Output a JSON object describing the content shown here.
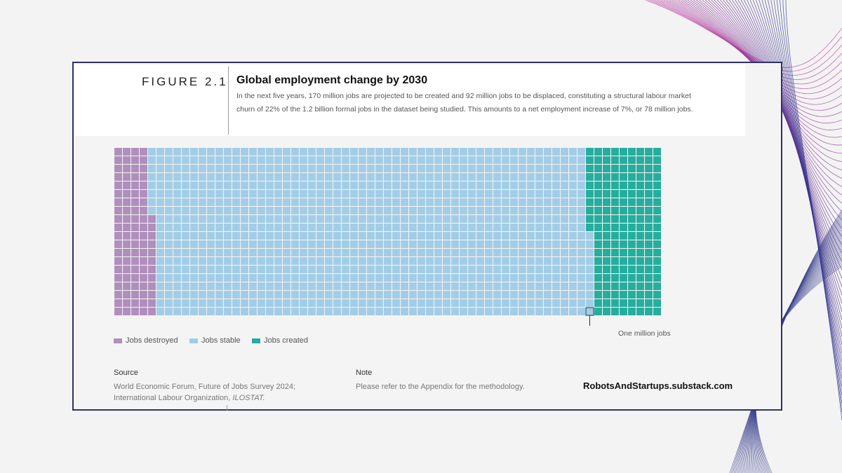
{
  "figure": {
    "label": "FIGURE 2.1",
    "title": "Global employment change by 2030",
    "subtitle": "In the next five years, 170 million jobs are projected to be created and 92 million jobs to be displaced, constituting a structural labour market churn of 22% of the 1.2 billion formal jobs in the dataset being studied. This amounts to a net employment increase of 7%, or 78 million jobs."
  },
  "chart_data": {
    "type": "waffle",
    "unit": "One million jobs",
    "categories": [
      "Jobs destroyed",
      "Jobs stable",
      "Jobs created"
    ],
    "values": [
      92,
      1038,
      170
    ],
    "colors": [
      "#b08fbd",
      "#a3cde6",
      "#27ad9e"
    ],
    "legend": [
      {
        "label": "Jobs destroyed",
        "color": "#b08fbd"
      },
      {
        "label": "Jobs stable",
        "color": "#a3cde6"
      },
      {
        "label": "Jobs created",
        "color": "#27ad9e"
      }
    ],
    "annotation": "One million jobs"
  },
  "source": {
    "label": "Source",
    "line1": "World Economic Forum, Future of Jobs Survey 2024;",
    "line2_prefix": "International Labour Organization, ",
    "line2_italic": "ILOSTAT."
  },
  "note": {
    "label": "Note",
    "text": "Please refer to the Appendix for the methodology."
  },
  "watermark": "RobotsAndStartups.substack.com"
}
